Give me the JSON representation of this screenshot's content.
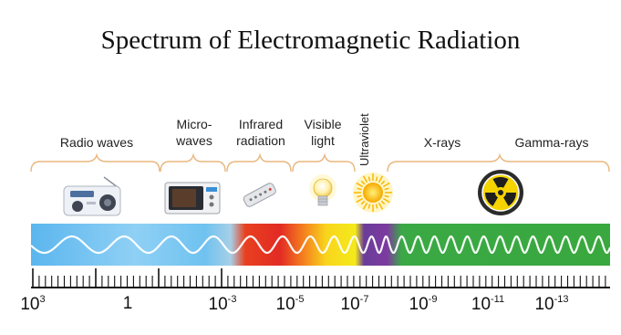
{
  "title": "Spectrum of Electromagnetic Radiation",
  "categories": [
    {
      "label": "Radio waves"
    },
    {
      "label": "Micro-\nwaves"
    },
    {
      "label": "Infrared\nradiation"
    },
    {
      "label": "Visible\nlight"
    },
    {
      "label": "Ultraviolet"
    },
    {
      "label": "X-rays"
    },
    {
      "label": "Gamma-rays"
    }
  ],
  "icons": [
    "radio-icon",
    "microwave-oven-icon",
    "remote-control-icon",
    "light-bulb-icon",
    "sun-icon",
    "radiation-icon"
  ],
  "axis_ticks": [
    {
      "base": "10",
      "exp": "3"
    },
    {
      "base": "1",
      "exp": ""
    },
    {
      "base": "10",
      "exp": "-3"
    },
    {
      "base": "10",
      "exp": "-5"
    },
    {
      "base": "10",
      "exp": "-7"
    },
    {
      "base": "10",
      "exp": "-9"
    },
    {
      "base": "10",
      "exp": "-11"
    },
    {
      "base": "10",
      "exp": "-13"
    }
  ],
  "colors": {
    "radio": "#3ea6e6",
    "infrared": "#e53524",
    "visible": "#f6e21a",
    "ultraviolet": "#7b3a9c",
    "xray_gamma": "#4caa3a",
    "bracket": "#e9b77f"
  }
}
